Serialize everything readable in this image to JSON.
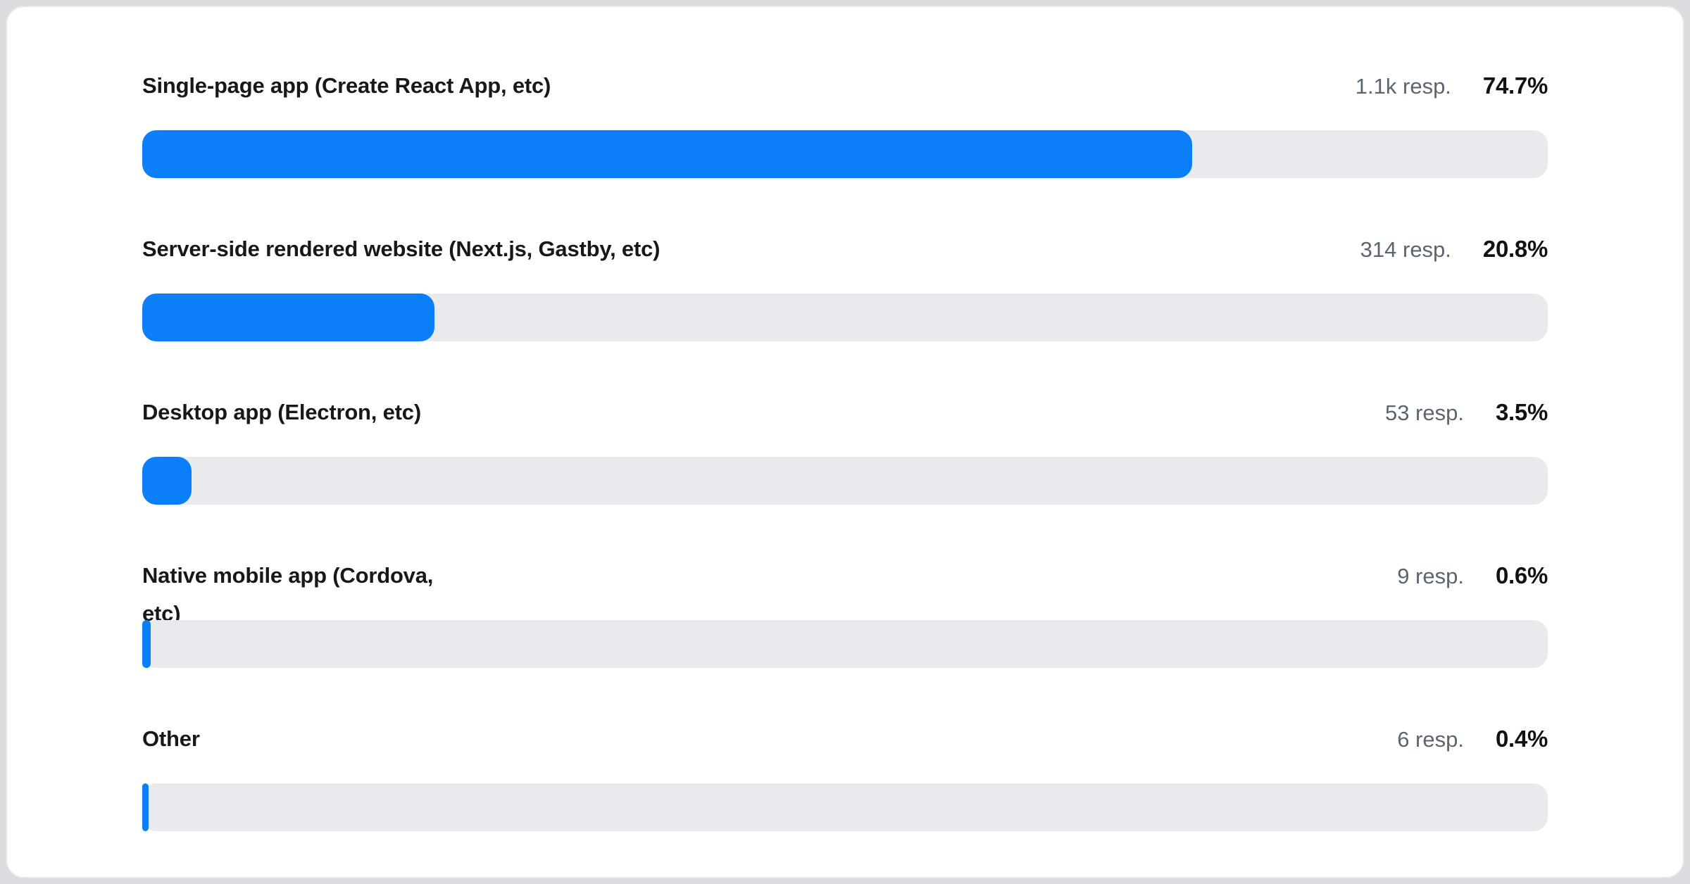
{
  "colors": {
    "bar_fill": "#0b7ff7",
    "bar_track": "#e9eaee",
    "card_background": "#ffffff",
    "page_background": "#d9dbdf",
    "label_text": "#16181c",
    "responses_text": "#5a6570",
    "percent_text": "#101215"
  },
  "chart_data": {
    "type": "bar",
    "orientation": "horizontal",
    "unit": "%",
    "xlim": [
      0,
      100
    ],
    "title": "",
    "categories": [
      "Single-page app (Create React App, etc)",
      "Server-side rendered website (Next.js, Gastby, etc)",
      "Desktop app (Electron, etc)",
      "Native mobile app (Cordova, etc)",
      "Other"
    ],
    "values": [
      74.7,
      20.8,
      3.5,
      0.6,
      0.4
    ],
    "rows": [
      {
        "label": "Single-page app (Create React App, etc)",
        "responses_label": "1.1k resp.",
        "percent": 74.7,
        "percent_label": "74.7%"
      },
      {
        "label": "Server-side rendered website (Next.js, Gastby, etc)",
        "responses_label": "314 resp.",
        "percent": 20.8,
        "percent_label": "20.8%"
      },
      {
        "label": "Desktop app (Electron, etc)",
        "responses_label": "53 resp.",
        "percent": 3.5,
        "percent_label": "3.5%"
      },
      {
        "label": "Native mobile app (Cordova,\netc)",
        "responses_label": "9 resp.",
        "percent": 0.6,
        "percent_label": "0.6%"
      },
      {
        "label": "Other",
        "responses_label": "6 resp.",
        "percent": 0.4,
        "percent_label": "0.4%"
      }
    ]
  }
}
